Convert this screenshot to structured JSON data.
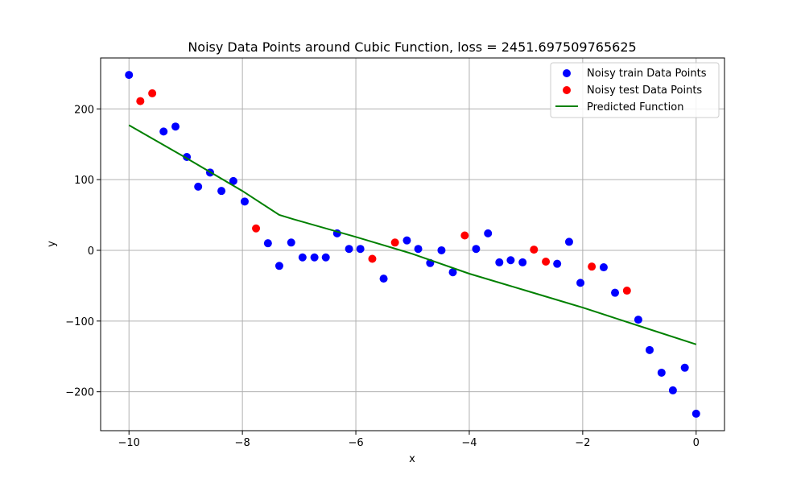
{
  "chart_data": {
    "type": "scatter",
    "title": "Noisy Data Points around Cubic Function, loss = 2451.697509765625",
    "xlabel": "x",
    "ylabel": "y",
    "xlim": [
      -10.5,
      0.5
    ],
    "ylim": [
      -255,
      272
    ],
    "xticks": [
      -10,
      -8,
      -6,
      -4,
      -2,
      0
    ],
    "yticks": [
      -200,
      -100,
      0,
      100,
      200
    ],
    "xtick_labels": [
      "−10",
      "−8",
      "−6",
      "−4",
      "−2",
      "0"
    ],
    "ytick_labels": [
      "−200",
      "−100",
      "0",
      "100",
      "200"
    ],
    "grid": true,
    "legend_position": "top-right",
    "series": [
      {
        "name": "Noisy train Data Points",
        "kind": "scatter",
        "color": "#0000ff",
        "points": [
          [
            -10.0,
            248
          ],
          [
            -9.39,
            168
          ],
          [
            -9.18,
            175
          ],
          [
            -8.98,
            132
          ],
          [
            -8.78,
            90
          ],
          [
            -8.57,
            110
          ],
          [
            -8.37,
            84
          ],
          [
            -8.16,
            98
          ],
          [
            -7.96,
            69
          ],
          [
            -7.55,
            10
          ],
          [
            -7.35,
            -22
          ],
          [
            -7.14,
            11
          ],
          [
            -6.94,
            -10
          ],
          [
            -6.73,
            -10
          ],
          [
            -6.53,
            -10
          ],
          [
            -6.33,
            24
          ],
          [
            -6.12,
            2
          ],
          [
            -5.92,
            2
          ],
          [
            -5.51,
            -40
          ],
          [
            -5.1,
            14
          ],
          [
            -4.9,
            2
          ],
          [
            -4.69,
            -18
          ],
          [
            -4.49,
            0
          ],
          [
            -4.29,
            -31
          ],
          [
            -3.88,
            2
          ],
          [
            -3.67,
            24
          ],
          [
            -3.47,
            -17
          ],
          [
            -3.27,
            -14
          ],
          [
            -3.06,
            -17
          ],
          [
            -2.45,
            -19
          ],
          [
            -2.24,
            12
          ],
          [
            -2.04,
            -46
          ],
          [
            -1.63,
            -24
          ],
          [
            -1.43,
            -60
          ],
          [
            -1.02,
            -98
          ],
          [
            -0.82,
            -141
          ],
          [
            -0.61,
            -173
          ],
          [
            -0.41,
            -198
          ],
          [
            -0.2,
            -166
          ],
          [
            0.0,
            -231
          ]
        ]
      },
      {
        "name": "Noisy test Data Points",
        "kind": "scatter",
        "color": "#ff0000",
        "points": [
          [
            -9.8,
            211
          ],
          [
            -9.59,
            222
          ],
          [
            -7.76,
            31
          ],
          [
            -5.71,
            -12
          ],
          [
            -5.31,
            11
          ],
          [
            -4.08,
            21
          ],
          [
            -2.86,
            1
          ],
          [
            -2.65,
            -16
          ],
          [
            -1.84,
            -23
          ],
          [
            -1.22,
            -57
          ]
        ]
      },
      {
        "name": "Predicted Function",
        "kind": "line",
        "color": "#008000",
        "points": [
          [
            -10.0,
            177
          ],
          [
            -9.0,
            131
          ],
          [
            -8.0,
            84
          ],
          [
            -7.35,
            50
          ],
          [
            -7.1,
            44
          ],
          [
            -6.0,
            19
          ],
          [
            -5.0,
            -5
          ],
          [
            -4.0,
            -33
          ],
          [
            -3.0,
            -57
          ],
          [
            -2.0,
            -81
          ],
          [
            -1.0,
            -107
          ],
          [
            0.0,
            -133
          ]
        ]
      }
    ]
  }
}
